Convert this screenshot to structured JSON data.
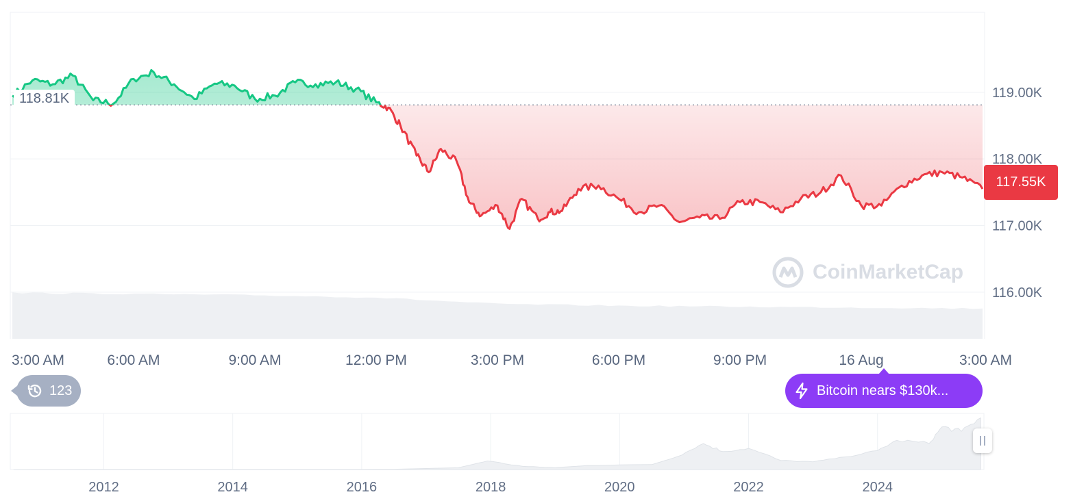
{
  "chart_data": {
    "type": "line",
    "title": "",
    "ylabel": "",
    "xlabel": "",
    "ylim": [
      115.3,
      120.2
    ],
    "y_ticks": [
      "116.00K",
      "117.00K",
      "118.00K",
      "119.00K"
    ],
    "y_tick_values": [
      116,
      117,
      118,
      119
    ],
    "x_ticks": [
      "3:00 AM",
      "6:00 AM",
      "9:00 AM",
      "12:00 PM",
      "3:00 PM",
      "6:00 PM",
      "9:00 PM",
      "16 Aug",
      "3:00 AM"
    ],
    "x_tick_hours": [
      3,
      6,
      9,
      12,
      15,
      18,
      21,
      24,
      27
    ],
    "x_range_hours": [
      2.95,
      27.05
    ],
    "reference_value": 118.81,
    "reference_label": "118.81K",
    "current_value": 117.55,
    "current_label": "117.55K",
    "above_color": "#16c784",
    "below_color": "#ea3943",
    "series": [
      {
        "x": [
          3.0,
          3.5,
          4.0,
          4.5,
          5.0,
          5.5,
          6.0,
          6.5,
          7.0,
          7.5,
          8.0,
          8.5,
          9.0,
          9.5,
          10.0,
          10.5,
          11.0,
          11.5,
          12.0,
          12.3,
          12.6,
          13.0,
          13.3,
          13.6,
          14.0,
          14.3,
          14.6,
          15.0,
          15.3,
          15.6,
          16.0,
          16.3,
          16.6,
          17.0,
          17.5,
          18.0,
          18.5,
          19.0,
          19.5,
          20.0,
          20.5,
          21.0,
          21.5,
          22.0,
          22.5,
          23.0,
          23.5,
          24.0,
          24.5,
          25.0,
          25.5,
          26.0,
          26.5,
          27.0
        ],
        "values": [
          118.95,
          119.18,
          119.12,
          119.25,
          118.88,
          118.83,
          119.2,
          119.3,
          119.12,
          118.9,
          119.13,
          119.1,
          118.9,
          118.95,
          119.15,
          119.12,
          119.15,
          119.05,
          118.85,
          118.77,
          118.5,
          118.05,
          117.8,
          118.15,
          117.95,
          117.35,
          117.15,
          117.3,
          116.95,
          117.4,
          117.1,
          117.2,
          117.22,
          117.55,
          117.6,
          117.4,
          117.2,
          117.3,
          117.05,
          117.12,
          117.1,
          117.35,
          117.35,
          117.2,
          117.4,
          117.5,
          117.75,
          117.3,
          117.3,
          117.6,
          117.75,
          117.8,
          117.72,
          117.55
        ]
      }
    ],
    "volume": {
      "x": [
        3,
        6,
        9,
        12,
        15,
        18,
        21,
        24,
        27
      ],
      "values": [
        1.0,
        0.98,
        0.95,
        0.9,
        0.76,
        0.72,
        0.7,
        0.68,
        0.66
      ]
    },
    "navigator": {
      "x_ticks": [
        "2012",
        "2014",
        "2016",
        "2018",
        "2020",
        "2022",
        "2024"
      ],
      "x_tick_years": [
        2012,
        2014,
        2016,
        2018,
        2020,
        2022,
        2024
      ],
      "x_range_years": [
        2010.55,
        2025.65
      ],
      "x": [
        2010.6,
        2013,
        2015,
        2016.5,
        2017.5,
        2017.95,
        2018.5,
        2019,
        2019.5,
        2020.5,
        2020.9,
        2021.3,
        2021.6,
        2022.0,
        2022.5,
        2023.0,
        2023.5,
        2024.0,
        2024.3,
        2024.8,
        2025.0,
        2025.3,
        2025.6
      ],
      "values": [
        0,
        0.5,
        0.3,
        0.6,
        4,
        19,
        7,
        4,
        9,
        11,
        29,
        58,
        40,
        47,
        20,
        17,
        28,
        42,
        65,
        58,
        95,
        85,
        115
      ]
    }
  },
  "history_count": "123",
  "news_text": "Bitcoin nears $130k...",
  "watermark": "CoinMarketCap"
}
